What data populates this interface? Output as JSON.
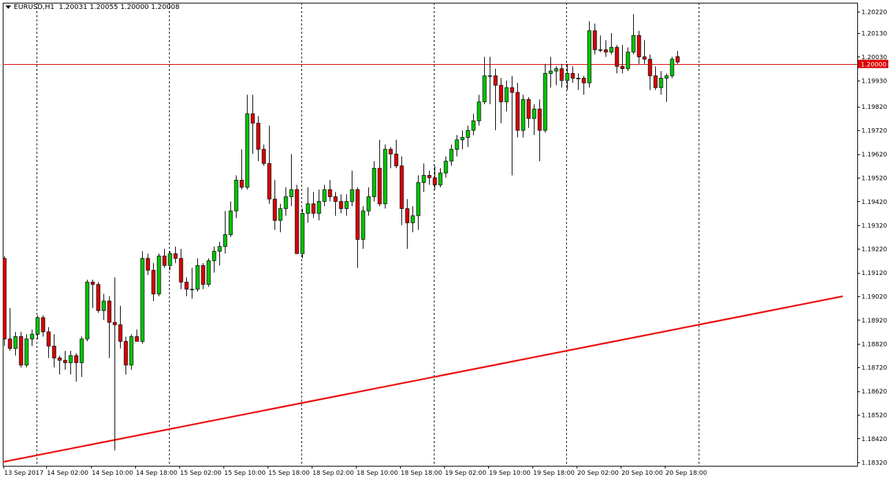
{
  "header": {
    "symbol": "EURUSD,H1",
    "ohlc": "1.20031 1.20055 1.20000 1.20008"
  },
  "colors": {
    "background": "#ffffff",
    "frame": "#000000",
    "grid": "#000000",
    "bull": "#00c800",
    "bear": "#dd0000",
    "wick": "#000000",
    "price_line": "#dd0000",
    "trendline": "#ee1111",
    "price_tag_bg": "#dd0000",
    "price_tag_text": "#ffffff"
  },
  "chart_data": {
    "type": "candlestick",
    "y_ticks": [
      "1.20220",
      "1.20130",
      "1.20030",
      "1.19930",
      "1.19820",
      "1.19720",
      "1.19620",
      "1.19520",
      "1.19420",
      "1.19320",
      "1.19220",
      "1.19120",
      "1.19020",
      "1.18920",
      "1.18820",
      "1.18720",
      "1.18620",
      "1.18520",
      "1.18420",
      "1.18320"
    ],
    "ylim": [
      1.18305,
      1.20258
    ],
    "x_ticks": [
      "13 Sep 2017",
      "14 Sep 02:00",
      "14 Sep 10:00",
      "14 Sep 18:00",
      "15 Sep 02:00",
      "15 Sep 10:00",
      "15 Sep 18:00",
      "18 Sep 02:00",
      "18 Sep 10:00",
      "18 Sep 18:00",
      "19 Sep 02:00",
      "19 Sep 10:00",
      "19 Sep 18:00",
      "20 Sep 02:00",
      "20 Sep 10:00",
      "20 Sep 18:00"
    ],
    "current_price": "1.20000",
    "trendline": {
      "start": {
        "bar": -0.5,
        "price": 1.1832
      },
      "end": {
        "bar": 152,
        "price": 1.1902
      }
    },
    "candles": [
      [
        1.1918,
        1.1919,
        1.1881,
        1.1884
      ],
      [
        1.1884,
        1.1897,
        1.1879,
        1.188
      ],
      [
        1.188,
        1.1887,
        1.1877,
        1.1885
      ],
      [
        1.1885,
        1.1887,
        1.1872,
        1.1873
      ],
      [
        1.1873,
        1.1886,
        1.1872,
        1.1884
      ],
      [
        1.1884,
        1.1888,
        1.1881,
        1.1886
      ],
      [
        1.1886,
        1.1894,
        1.1884,
        1.1893
      ],
      [
        1.1893,
        1.1894,
        1.1885,
        1.1887
      ],
      [
        1.1887,
        1.1889,
        1.1876,
        1.1881
      ],
      [
        1.1881,
        1.1886,
        1.1872,
        1.1876
      ],
      [
        1.1876,
        1.1877,
        1.1869,
        1.1875
      ],
      [
        1.1875,
        1.1879,
        1.1871,
        1.1874
      ],
      [
        1.1874,
        1.1879,
        1.1869,
        1.1877
      ],
      [
        1.1877,
        1.1878,
        1.1866,
        1.1874
      ],
      [
        1.1874,
        1.1885,
        1.1868,
        1.1884
      ],
      [
        1.1884,
        1.1909,
        1.1883,
        1.1908
      ],
      [
        1.1908,
        1.1909,
        1.1897,
        1.1907
      ],
      [
        1.1907,
        1.1908,
        1.1895,
        1.1896
      ],
      [
        1.1896,
        1.1903,
        1.1892,
        1.19
      ],
      [
        1.19,
        1.1902,
        1.1876,
        1.1891
      ],
      [
        1.1891,
        1.191,
        1.1837,
        1.189
      ],
      [
        1.189,
        1.1898,
        1.188,
        1.1883
      ],
      [
        1.1883,
        1.1885,
        1.1869,
        1.1873
      ],
      [
        1.1873,
        1.1886,
        1.1871,
        1.1885
      ],
      [
        1.1885,
        1.1888,
        1.1883,
        1.1883
      ],
      [
        1.1883,
        1.1921,
        1.1882,
        1.1918
      ],
      [
        1.1918,
        1.192,
        1.1911,
        1.1913
      ],
      [
        1.1913,
        1.1916,
        1.19,
        1.1903
      ],
      [
        1.1903,
        1.192,
        1.1902,
        1.1919
      ],
      [
        1.1919,
        1.1922,
        1.1914,
        1.1915
      ],
      [
        1.1915,
        1.1921,
        1.1913,
        1.192
      ],
      [
        1.192,
        1.1923,
        1.1916,
        1.1918
      ],
      [
        1.1918,
        1.1922,
        1.1905,
        1.1908
      ],
      [
        1.1908,
        1.191,
        1.1902,
        1.1905
      ],
      [
        1.1905,
        1.1914,
        1.1901,
        1.1905
      ],
      [
        1.1905,
        1.1918,
        1.1904,
        1.1915
      ],
      [
        1.1915,
        1.1916,
        1.1905,
        1.1907
      ],
      [
        1.1907,
        1.1918,
        1.1906,
        1.1917
      ],
      [
        1.1917,
        1.1923,
        1.1912,
        1.1921
      ],
      [
        1.1921,
        1.1925,
        1.1915,
        1.1923
      ],
      [
        1.1923,
        1.1938,
        1.192,
        1.1928
      ],
      [
        1.1928,
        1.1942,
        1.1927,
        1.1938
      ],
      [
        1.1938,
        1.1953,
        1.1935,
        1.1951
      ],
      [
        1.1951,
        1.1964,
        1.1947,
        1.1948
      ],
      [
        1.1948,
        1.1987,
        1.1947,
        1.1979
      ],
      [
        1.1979,
        1.1987,
        1.1962,
        1.1975
      ],
      [
        1.1975,
        1.1978,
        1.1959,
        1.1964
      ],
      [
        1.1964,
        1.1966,
        1.1957,
        1.1958
      ],
      [
        1.1958,
        1.1974,
        1.1941,
        1.1943
      ],
      [
        1.1943,
        1.1951,
        1.193,
        1.1934
      ],
      [
        1.1934,
        1.1941,
        1.1929,
        1.1939
      ],
      [
        1.1939,
        1.1948,
        1.1936,
        1.1944
      ],
      [
        1.1944,
        1.1962,
        1.194,
        1.1947
      ],
      [
        1.1947,
        1.1949,
        1.192,
        1.192
      ],
      [
        1.192,
        1.1939,
        1.1918,
        1.1937
      ],
      [
        1.1937,
        1.1948,
        1.1933,
        1.1941
      ],
      [
        1.1941,
        1.1946,
        1.1935,
        1.1937
      ],
      [
        1.1937,
        1.1947,
        1.1934,
        1.1942
      ],
      [
        1.1942,
        1.1949,
        1.194,
        1.1947
      ],
      [
        1.1947,
        1.1951,
        1.1942,
        1.1944
      ],
      [
        1.1944,
        1.1946,
        1.1936,
        1.1942
      ],
      [
        1.1942,
        1.1945,
        1.1937,
        1.1939
      ],
      [
        1.1939,
        1.1945,
        1.1936,
        1.1942
      ],
      [
        1.1942,
        1.1955,
        1.194,
        1.1947
      ],
      [
        1.1947,
        1.1948,
        1.1914,
        1.1926
      ],
      [
        1.1926,
        1.194,
        1.1922,
        1.1938
      ],
      [
        1.1938,
        1.1948,
        1.1936,
        1.1944
      ],
      [
        1.1944,
        1.1959,
        1.1942,
        1.1956
      ],
      [
        1.1956,
        1.1968,
        1.194,
        1.1941
      ],
      [
        1.1941,
        1.1966,
        1.1939,
        1.1964
      ],
      [
        1.1964,
        1.1965,
        1.1956,
        1.1962
      ],
      [
        1.1962,
        1.1968,
        1.1956,
        1.1957
      ],
      [
        1.1957,
        1.1961,
        1.1932,
        1.1939
      ],
      [
        1.1939,
        1.1943,
        1.1922,
        1.1933
      ],
      [
        1.1933,
        1.194,
        1.1929,
        1.1936
      ],
      [
        1.1936,
        1.1953,
        1.193,
        1.195
      ],
      [
        1.195,
        1.1958,
        1.1946,
        1.1953
      ],
      [
        1.1953,
        1.1955,
        1.1949,
        1.1952
      ],
      [
        1.1952,
        1.1957,
        1.1947,
        1.1949
      ],
      [
        1.1949,
        1.1956,
        1.1948,
        1.1954
      ],
      [
        1.1954,
        1.1961,
        1.1952,
        1.1959
      ],
      [
        1.1959,
        1.1966,
        1.1957,
        1.1964
      ],
      [
        1.1964,
        1.197,
        1.1961,
        1.1968
      ],
      [
        1.1968,
        1.1972,
        1.1964,
        1.1969
      ],
      [
        1.1969,
        1.1974,
        1.1965,
        1.1972
      ],
      [
        1.1972,
        1.1979,
        1.197,
        1.1976
      ],
      [
        1.1976,
        1.1987,
        1.1974,
        1.1984
      ],
      [
        1.1984,
        1.2003,
        1.1983,
        1.1995
      ],
      [
        1.1995,
        1.2003,
        1.1983,
        1.1995
      ],
      [
        1.1995,
        1.1998,
        1.1972,
        1.1991
      ],
      [
        1.1991,
        1.1994,
        1.1975,
        1.1984
      ],
      [
        1.1984,
        1.1993,
        1.198,
        1.199
      ],
      [
        1.199,
        1.1995,
        1.1953,
        1.1988
      ],
      [
        1.1988,
        1.1992,
        1.1969,
        1.1972
      ],
      [
        1.1972,
        1.1987,
        1.1969,
        1.1985
      ],
      [
        1.1985,
        1.1986,
        1.1973,
        1.1977
      ],
      [
        1.1977,
        1.1983,
        1.197,
        1.1981
      ],
      [
        1.1981,
        1.1985,
        1.1959,
        1.1972
      ],
      [
        1.1972,
        1.2,
        1.1971,
        1.1996
      ],
      [
        1.1996,
        1.2003,
        1.199,
        1.1997
      ],
      [
        1.1997,
        1.1999,
        1.1991,
        1.1998
      ],
      [
        1.1998,
        1.2,
        1.199,
        1.1993
      ],
      [
        1.1993,
        1.2,
        1.1989,
        1.1996
      ],
      [
        1.1996,
        1.1999,
        1.1992,
        1.1994
      ],
      [
        1.1994,
        1.1996,
        1.1989,
        1.1994
      ],
      [
        1.1994,
        1.1995,
        1.1987,
        1.1992
      ],
      [
        1.1992,
        1.2018,
        1.199,
        1.2014
      ],
      [
        1.2014,
        1.2017,
        1.2004,
        1.2006
      ],
      [
        1.2006,
        1.2012,
        1.2005,
        1.2006
      ],
      [
        1.2006,
        1.201,
        1.2003,
        1.2005
      ],
      [
        1.2005,
        1.2013,
        1.2004,
        1.2007
      ],
      [
        1.2007,
        1.2008,
        1.1996,
        1.1999
      ],
      [
        1.1999,
        1.2008,
        1.1996,
        1.1998
      ],
      [
        1.1998,
        1.2007,
        1.1997,
        1.2005
      ],
      [
        1.2005,
        1.2021,
        1.2004,
        1.2012
      ],
      [
        1.2012,
        1.2014,
        1.2,
        1.2003
      ],
      [
        1.2003,
        1.201,
        1.2,
        1.2002
      ],
      [
        1.2002,
        1.2004,
        1.1989,
        1.1995
      ],
      [
        1.1995,
        1.1999,
        1.1989,
        1.199
      ],
      [
        1.199,
        1.1997,
        1.1987,
        1.1994
      ],
      [
        1.1994,
        1.1996,
        1.1984,
        1.1995
      ],
      [
        1.1995,
        1.2003,
        1.1994,
        1.2002
      ],
      [
        1.20031,
        1.20055,
        1.2,
        1.20008
      ]
    ]
  }
}
